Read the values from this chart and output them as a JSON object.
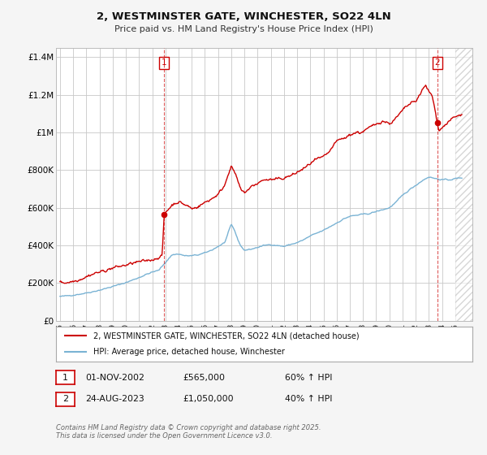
{
  "title": "2, WESTMINSTER GATE, WINCHESTER, SO22 4LN",
  "subtitle": "Price paid vs. HM Land Registry's House Price Index (HPI)",
  "legend_label_red": "2, WESTMINSTER GATE, WINCHESTER, SO22 4LN (detached house)",
  "legend_label_blue": "HPI: Average price, detached house, Winchester",
  "marker1_x": 2002.917,
  "marker1_value": 565000,
  "marker1_label": "01-NOV-2002",
  "marker1_price": "£565,000",
  "marker1_hpi": "60% ↑ HPI",
  "marker2_x": 2023.646,
  "marker2_value": 1050000,
  "marker2_label": "24-AUG-2023",
  "marker2_price": "£1,050,000",
  "marker2_hpi": "40% ↑ HPI",
  "footnote": "Contains HM Land Registry data © Crown copyright and database right 2025.\nThis data is licensed under the Open Government Licence v3.0.",
  "red_color": "#cc0000",
  "blue_color": "#7ab3d4",
  "background_color": "#f5f5f5",
  "plot_bg_color": "#ffffff",
  "grid_color": "#c8c8c8",
  "ylim": [
    0,
    1450000
  ],
  "xlim_start": 1994.7,
  "xlim_end": 2026.3,
  "hatch_start": 2025.0,
  "hpi_anchors": [
    [
      1995.0,
      128000
    ],
    [
      1995.5,
      132000
    ],
    [
      1996.0,
      137000
    ],
    [
      1996.5,
      142000
    ],
    [
      1997.0,
      148000
    ],
    [
      1997.5,
      155000
    ],
    [
      1998.0,
      163000
    ],
    [
      1998.5,
      172000
    ],
    [
      1999.0,
      182000
    ],
    [
      1999.5,
      192000
    ],
    [
      2000.0,
      203000
    ],
    [
      2000.5,
      216000
    ],
    [
      2001.0,
      230000
    ],
    [
      2001.5,
      245000
    ],
    [
      2002.0,
      258000
    ],
    [
      2002.5,
      268000
    ],
    [
      2003.0,
      310000
    ],
    [
      2003.5,
      350000
    ],
    [
      2004.0,
      355000
    ],
    [
      2004.5,
      345000
    ],
    [
      2005.0,
      345000
    ],
    [
      2005.5,
      350000
    ],
    [
      2006.0,
      360000
    ],
    [
      2006.5,
      375000
    ],
    [
      2007.0,
      395000
    ],
    [
      2007.5,
      415000
    ],
    [
      2008.0,
      510000
    ],
    [
      2008.25,
      480000
    ],
    [
      2008.5,
      430000
    ],
    [
      2008.75,
      395000
    ],
    [
      2009.0,
      375000
    ],
    [
      2009.5,
      380000
    ],
    [
      2010.0,
      390000
    ],
    [
      2010.5,
      400000
    ],
    [
      2011.0,
      405000
    ],
    [
      2011.5,
      400000
    ],
    [
      2012.0,
      395000
    ],
    [
      2012.5,
      405000
    ],
    [
      2013.0,
      415000
    ],
    [
      2013.5,
      430000
    ],
    [
      2014.0,
      450000
    ],
    [
      2014.5,
      465000
    ],
    [
      2015.0,
      480000
    ],
    [
      2015.5,
      500000
    ],
    [
      2016.0,
      520000
    ],
    [
      2016.5,
      540000
    ],
    [
      2017.0,
      555000
    ],
    [
      2017.5,
      560000
    ],
    [
      2018.0,
      565000
    ],
    [
      2018.5,
      570000
    ],
    [
      2019.0,
      580000
    ],
    [
      2019.5,
      590000
    ],
    [
      2020.0,
      600000
    ],
    [
      2020.5,
      630000
    ],
    [
      2021.0,
      665000
    ],
    [
      2021.5,
      695000
    ],
    [
      2022.0,
      720000
    ],
    [
      2022.5,
      745000
    ],
    [
      2023.0,
      765000
    ],
    [
      2023.5,
      755000
    ],
    [
      2024.0,
      750000
    ],
    [
      2024.5,
      748000
    ],
    [
      2025.0,
      755000
    ],
    [
      2025.5,
      760000
    ]
  ],
  "red_anchors": [
    [
      1995.0,
      200000
    ],
    [
      1995.25,
      202000
    ],
    [
      1995.5,
      203000
    ],
    [
      1995.75,
      207000
    ],
    [
      1996.0,
      210000
    ],
    [
      1996.25,
      215000
    ],
    [
      1996.5,
      220000
    ],
    [
      1996.75,
      228000
    ],
    [
      1997.0,
      235000
    ],
    [
      1997.25,
      242000
    ],
    [
      1997.5,
      248000
    ],
    [
      1997.75,
      255000
    ],
    [
      1998.0,
      258000
    ],
    [
      1998.25,
      263000
    ],
    [
      1998.5,
      268000
    ],
    [
      1998.75,
      275000
    ],
    [
      1999.0,
      280000
    ],
    [
      1999.25,
      285000
    ],
    [
      1999.5,
      288000
    ],
    [
      1999.75,
      292000
    ],
    [
      2000.0,
      295000
    ],
    [
      2000.25,
      300000
    ],
    [
      2000.5,
      305000
    ],
    [
      2000.75,
      310000
    ],
    [
      2001.0,
      312000
    ],
    [
      2001.25,
      315000
    ],
    [
      2001.5,
      318000
    ],
    [
      2001.75,
      322000
    ],
    [
      2002.0,
      325000
    ],
    [
      2002.25,
      330000
    ],
    [
      2002.5,
      338000
    ],
    [
      2002.75,
      345000
    ],
    [
      2002.917,
      565000
    ],
    [
      2003.0,
      572000
    ],
    [
      2003.25,
      595000
    ],
    [
      2003.5,
      615000
    ],
    [
      2003.75,
      625000
    ],
    [
      2004.0,
      632000
    ],
    [
      2004.25,
      625000
    ],
    [
      2004.5,
      615000
    ],
    [
      2004.75,
      608000
    ],
    [
      2005.0,
      595000
    ],
    [
      2005.25,
      600000
    ],
    [
      2005.5,
      608000
    ],
    [
      2005.75,
      618000
    ],
    [
      2006.0,
      628000
    ],
    [
      2006.25,
      638000
    ],
    [
      2006.5,
      648000
    ],
    [
      2006.75,
      660000
    ],
    [
      2007.0,
      672000
    ],
    [
      2007.25,
      695000
    ],
    [
      2007.5,
      720000
    ],
    [
      2007.75,
      780000
    ],
    [
      2008.0,
      820000
    ],
    [
      2008.25,
      790000
    ],
    [
      2008.5,
      740000
    ],
    [
      2008.75,
      690000
    ],
    [
      2009.0,
      680000
    ],
    [
      2009.25,
      695000
    ],
    [
      2009.5,
      710000
    ],
    [
      2009.75,
      720000
    ],
    [
      2010.0,
      730000
    ],
    [
      2010.25,
      740000
    ],
    [
      2010.5,
      750000
    ],
    [
      2010.75,
      748000
    ],
    [
      2011.0,
      750000
    ],
    [
      2011.25,
      748000
    ],
    [
      2011.5,
      752000
    ],
    [
      2011.75,
      755000
    ],
    [
      2012.0,
      758000
    ],
    [
      2012.25,
      765000
    ],
    [
      2012.5,
      770000
    ],
    [
      2012.75,
      778000
    ],
    [
      2013.0,
      788000
    ],
    [
      2013.25,
      798000
    ],
    [
      2013.5,
      808000
    ],
    [
      2013.75,
      820000
    ],
    [
      2014.0,
      835000
    ],
    [
      2014.25,
      848000
    ],
    [
      2014.5,
      858000
    ],
    [
      2014.75,
      862000
    ],
    [
      2015.0,
      868000
    ],
    [
      2015.25,
      882000
    ],
    [
      2015.5,
      902000
    ],
    [
      2015.75,
      930000
    ],
    [
      2016.0,
      952000
    ],
    [
      2016.25,
      962000
    ],
    [
      2016.5,
      968000
    ],
    [
      2016.75,
      975000
    ],
    [
      2017.0,
      988000
    ],
    [
      2017.25,
      995000
    ],
    [
      2017.5,
      1002000
    ],
    [
      2017.75,
      998000
    ],
    [
      2018.0,
      1005000
    ],
    [
      2018.25,
      1015000
    ],
    [
      2018.5,
      1025000
    ],
    [
      2018.75,
      1035000
    ],
    [
      2019.0,
      1045000
    ],
    [
      2019.25,
      1055000
    ],
    [
      2019.5,
      1062000
    ],
    [
      2019.75,
      1055000
    ],
    [
      2020.0,
      1048000
    ],
    [
      2020.25,
      1058000
    ],
    [
      2020.5,
      1075000
    ],
    [
      2020.75,
      1095000
    ],
    [
      2021.0,
      1115000
    ],
    [
      2021.25,
      1135000
    ],
    [
      2021.5,
      1148000
    ],
    [
      2021.75,
      1158000
    ],
    [
      2022.0,
      1165000
    ],
    [
      2022.25,
      1195000
    ],
    [
      2022.5,
      1225000
    ],
    [
      2022.75,
      1248000
    ],
    [
      2023.0,
      1215000
    ],
    [
      2023.25,
      1195000
    ],
    [
      2023.5,
      1105000
    ],
    [
      2023.646,
      1050000
    ],
    [
      2023.75,
      1015000
    ],
    [
      2024.0,
      1025000
    ],
    [
      2024.25,
      1042000
    ],
    [
      2024.5,
      1058000
    ],
    [
      2024.75,
      1072000
    ],
    [
      2025.0,
      1082000
    ],
    [
      2025.5,
      1095000
    ]
  ]
}
